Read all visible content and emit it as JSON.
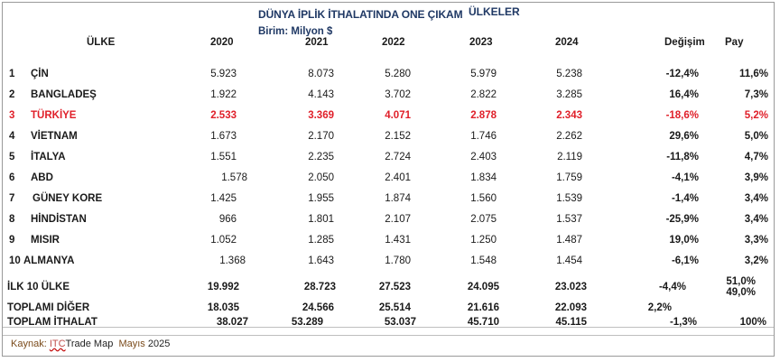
{
  "title": "DÜNYA İPLİK İTHALATINDA ONE ÇIKAM",
  "title_cont": "ÜLKELER",
  "unit": "Birim: Milyon $",
  "headers": {
    "country": "ÜLKE",
    "y2020": "2020",
    "y2021": "2021",
    "y2022": "2022",
    "y2023": "2023",
    "y2024": "2024",
    "change": "Değişim",
    "share": "Pay"
  },
  "rows": [
    {
      "rank": "1",
      "country": "ÇİN",
      "y2020": "5.923",
      "y2021": "8.073",
      "y2022": "5.280",
      "y2023": "5.979",
      "y2024": "5.238",
      "change": "-12,4%",
      "share": "11,6%"
    },
    {
      "rank": "2",
      "country": "BANGLADEŞ",
      "y2020": "1.922",
      "y2021": "4.143",
      "y2022": "3.702",
      "y2023": "2.822",
      "y2024": "3.285",
      "change": "16,4%",
      "share": "7,3%"
    },
    {
      "rank": "3",
      "country": "TÜRKİYE",
      "y2020": "2.533",
      "y2021": "3.369",
      "y2022": "4.071",
      "y2023": "2.878",
      "y2024": "2.343",
      "change": "-18,6%",
      "share": "5,2%"
    },
    {
      "rank": "4",
      "country": "VİETNAM",
      "y2020": "1.673",
      "y2021": "2.170",
      "y2022": "2.152",
      "y2023": "1.746",
      "y2024": "2.262",
      "change": "29,6%",
      "share": "5,0%"
    },
    {
      "rank": "5",
      "country": "İTALYA",
      "y2020": "1.551",
      "y2021": "2.235",
      "y2022": "2.724",
      "y2023": "2.403",
      "y2024": "2.119",
      "change": "-11,8%",
      "share": "4,7%"
    },
    {
      "rank": "6",
      "country": "ABD",
      "y2020": "1.578",
      "y2021": "2.050",
      "y2022": "2.401",
      "y2023": "1.834",
      "y2024": "1.759",
      "change": "-4,1%",
      "share": "3,9%"
    },
    {
      "rank": "7",
      "country": "GÜNEY KORE",
      "y2020": "1.425",
      "y2021": "1.955",
      "y2022": "1.874",
      "y2023": "1.560",
      "y2024": "1.539",
      "change": "-1,4%",
      "share": "3,4%"
    },
    {
      "rank": "8",
      "country": "HİNDİSTAN",
      "y2020": "966",
      "y2021": "1.801",
      "y2022": "2.107",
      "y2023": "2.075",
      "y2024": "1.537",
      "change": "-25,9%",
      "share": "3,4%"
    },
    {
      "rank": "9",
      "country": "MISIR",
      "y2020": "1.052",
      "y2021": "1.285",
      "y2022": "1.431",
      "y2023": "1.250",
      "y2024": "1.487",
      "change": "19,0%",
      "share": "3,3%"
    },
    {
      "rank": "10",
      "country": "ALMANYA",
      "y2020": "1.368",
      "y2021": "1.643",
      "y2022": "1.780",
      "y2023": "1.548",
      "y2024": "1.454",
      "change": "-6,1%",
      "share": "3,2%"
    }
  ],
  "totals": {
    "top10": {
      "label": "İLK 10 ÜLKE",
      "y2020": "19.992",
      "y2021": "28.723",
      "y2022": "27.523",
      "y2023": "24.095",
      "y2024": "23.023",
      "change": "-4,4%",
      "share": "51,0%"
    },
    "other": {
      "label": "TOPLAMI DİĞER",
      "y2020": "18.035",
      "y2021": "24.566",
      "y2022": "25.514",
      "y2023": "21.616",
      "y2024": "22.093",
      "change": "2,2%",
      "share": "49,0%"
    },
    "total": {
      "label": "TOPLAM İTHALAT",
      "y2020": "38.027",
      "y2021": "53.289",
      "y2022": "53.037",
      "y2023": "45.710",
      "y2024": "45.115",
      "change": "-1,3%",
      "share": "100%"
    }
  },
  "source": {
    "label": "Kaynak:",
    "itc": "ITC",
    "trade_map": "Trade Map",
    "month": "Mayıs",
    "year": "2025"
  },
  "colors": {
    "title": "#1f3864",
    "highlight": "#e0202a"
  }
}
